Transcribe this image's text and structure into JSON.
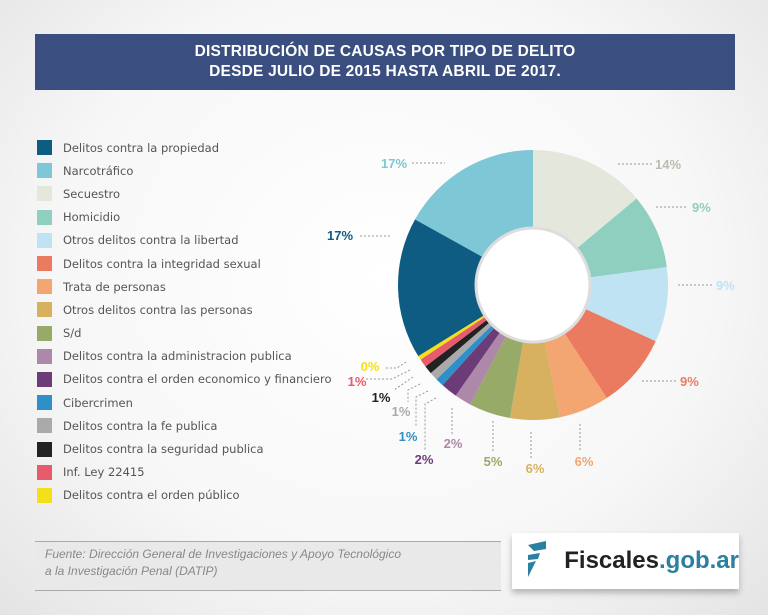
{
  "title_line1": "DISTRIBUCIÓN DE CAUSAS POR TIPO DE DELITO",
  "title_line2": "DESDE JULIO DE 2015 HASTA ABRIL DE 2017.",
  "chart_data": {
    "type": "pie",
    "donut": true,
    "legend_position": "left",
    "categories": [
      "Secuestro",
      "Homicidio",
      "Otros delitos contra la libertad",
      "Delitos contra la integridad sexual",
      "Trata de personas",
      "Otros delitos contra las personas",
      "S/d",
      "Delitos contra la administracion publica",
      "Delitos contra el orden economico y financiero",
      "Cibercrimen",
      "Delitos contra la fe publica",
      "Delitos contra la seguridad publica",
      "Inf. Ley 22415",
      "Delitos contra el orden público",
      "Delitos contra la propiedad",
      "Narcotráfico"
    ],
    "values": [
      14,
      9,
      9,
      9,
      6,
      6,
      5,
      2,
      2,
      1,
      1,
      1,
      1,
      0,
      17,
      17
    ],
    "labels": [
      "14%",
      "9%",
      "9%",
      "9%",
      "6%",
      "6%",
      "5%",
      "2%",
      "2%",
      "1%",
      "1%",
      "1%",
      "1%",
      "0%",
      "17%",
      "17%"
    ],
    "colors": [
      "#e4e7dc",
      "#8fcfbf",
      "#bfe3f3",
      "#eb7b60",
      "#f3a572",
      "#d7b160",
      "#97aa68",
      "#ad88a8",
      "#6b3c78",
      "#2f8fc8",
      "#aaaaaa",
      "#222222",
      "#e75b6c",
      "#f4e019",
      "#0f5c82",
      "#7ec7d6"
    ],
    "legend_order": [
      14,
      15,
      0,
      1,
      2,
      3,
      4,
      5,
      6,
      7,
      8,
      9,
      10,
      11,
      12,
      13
    ]
  },
  "source": {
    "line1": "Fuente: Dirección General de Investigaciones y Apoyo Tecnológico",
    "line2": "a la Investigación Penal (DATIP)"
  },
  "logo": {
    "part1": "Fiscales",
    "part2": ".gob.ar"
  }
}
